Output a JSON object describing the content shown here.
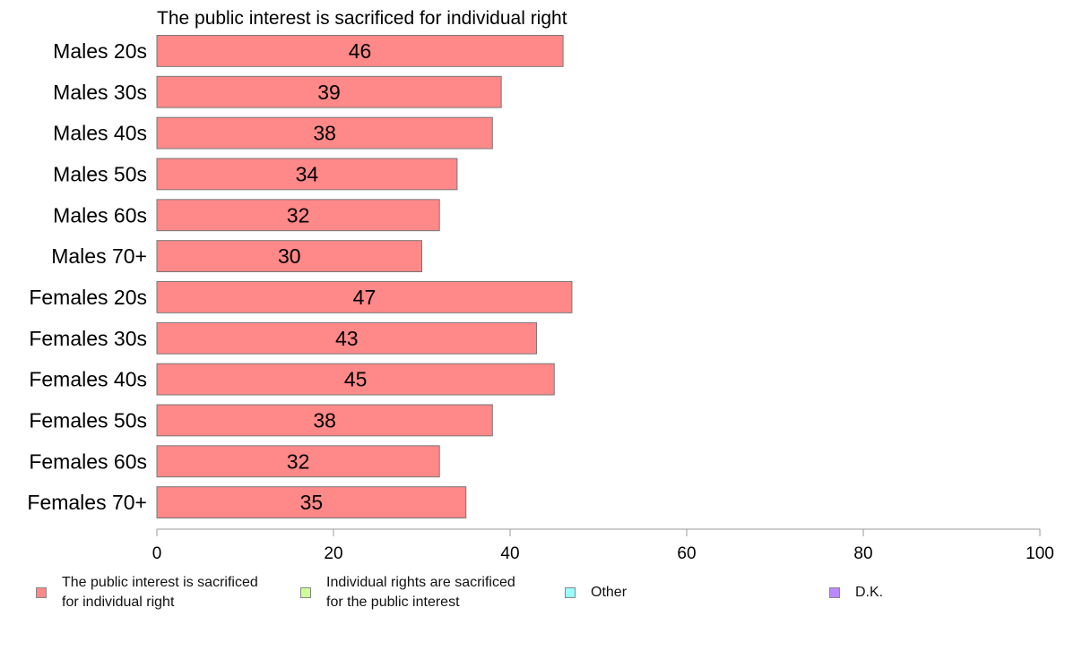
{
  "chart_data": {
    "type": "bar",
    "orientation": "horizontal",
    "title": "The public interest is sacrificed for individual right",
    "categories": [
      "Males 20s",
      "Males 30s",
      "Males 40s",
      "Males 50s",
      "Males 60s",
      "Males 70+",
      "Females 20s",
      "Females 30s",
      "Females 40s",
      "Females 50s",
      "Females 60s",
      "Females 70+"
    ],
    "series": [
      {
        "name": "The public interest is sacrificed for individual right",
        "color": "#ff8888",
        "values": [
          46,
          39,
          38,
          34,
          32,
          30,
          47,
          43,
          45,
          38,
          32,
          35
        ]
      }
    ],
    "xlim": [
      0,
      100
    ],
    "xticks": [
      "0",
      "20",
      "40",
      "60",
      "80",
      "100"
    ],
    "grid": false,
    "legend_position": "bottom"
  },
  "legend": [
    {
      "label": "The public interest is sacrificed\nfor individual right",
      "color": "#ff8888"
    },
    {
      "label": "Individual rights are sacrificed\nfor the public interest",
      "color": "#ccff99"
    },
    {
      "label": "Other",
      "color": "#99ffff"
    },
    {
      "label": "D.K.",
      "color": "#bb88ff"
    }
  ]
}
